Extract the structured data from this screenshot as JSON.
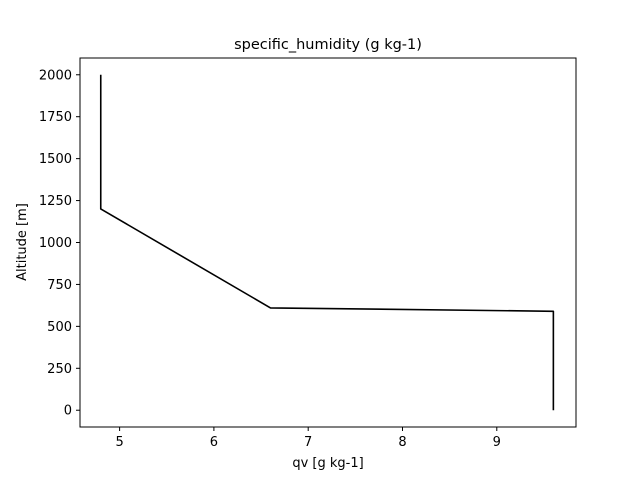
{
  "chart_data": {
    "type": "line",
    "title": "specific_humidity (g kg-1)",
    "xlabel": "qv [g kg-1]",
    "ylabel": "Altitude [m]",
    "xlim": [
      4.58,
      9.84
    ],
    "ylim": [
      -100,
      2100
    ],
    "x_ticks": [
      5,
      6,
      7,
      8,
      9
    ],
    "y_ticks": [
      0,
      250,
      500,
      750,
      1000,
      1250,
      1500,
      1750,
      2000
    ],
    "grid": false,
    "series": [
      {
        "color": "#000000",
        "points": [
          {
            "x": 9.6,
            "y": 0
          },
          {
            "x": 9.6,
            "y": 590
          },
          {
            "x": 6.6,
            "y": 610
          },
          {
            "x": 4.8,
            "y": 1200
          },
          {
            "x": 4.8,
            "y": 2000
          }
        ]
      }
    ]
  }
}
